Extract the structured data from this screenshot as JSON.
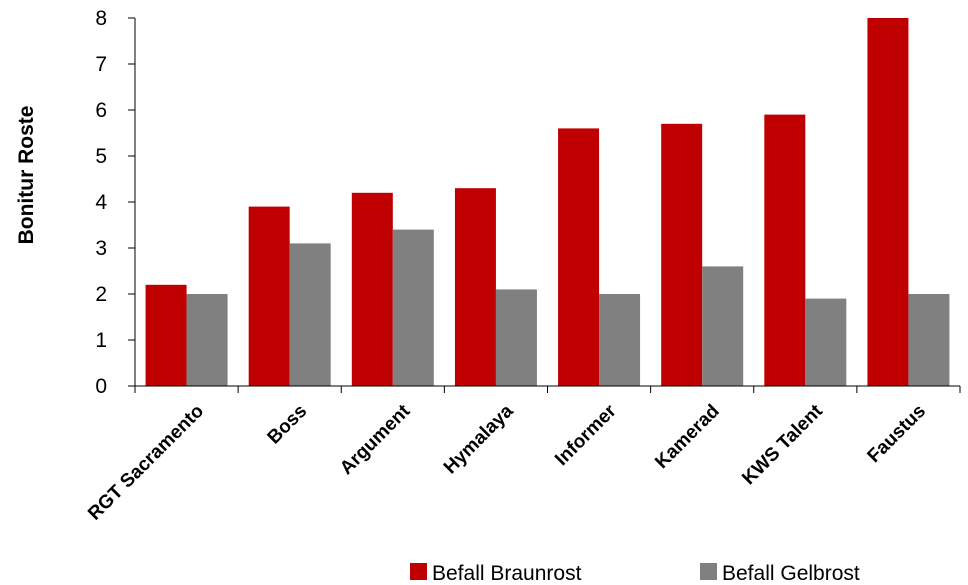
{
  "chart_data": {
    "type": "bar",
    "title": "",
    "xlabel": "",
    "ylabel": "Bonitur Roste",
    "ylim": [
      0,
      8
    ],
    "yticks": [
      0,
      1,
      2,
      3,
      4,
      5,
      6,
      7,
      8
    ],
    "categories": [
      "RGT Sacramento",
      "Boss",
      "Argument",
      "Hymalaya",
      "Informer",
      "Kamerad",
      "KWS Talent",
      "Faustus"
    ],
    "series": [
      {
        "name": "Befall Braunrost",
        "color": "#c00000",
        "values": [
          2.2,
          3.9,
          4.2,
          4.3,
          5.6,
          5.7,
          5.9,
          8.0
        ]
      },
      {
        "name": "Befall Gelbrost",
        "color": "#808080",
        "values": [
          2.0,
          3.1,
          3.4,
          2.1,
          2.0,
          2.6,
          1.9,
          2.0
        ]
      }
    ],
    "grid": false,
    "legend_position": "bottom"
  }
}
